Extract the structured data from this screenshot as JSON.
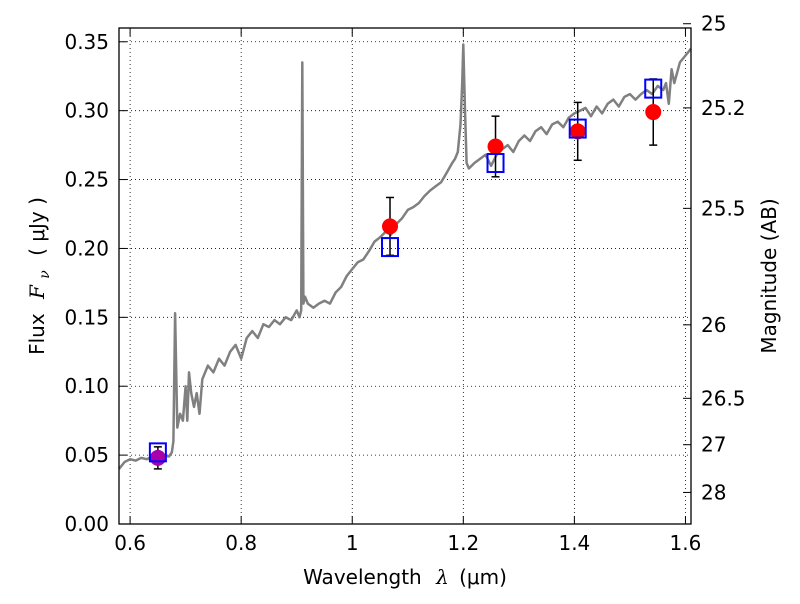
{
  "chart_data": {
    "type": "scatter",
    "xlabel": {
      "prefix": "Wavelength",
      "symbol": "λ",
      "unit": "(μm)"
    },
    "ylabel": {
      "prefix": "Flux",
      "symbol": "F",
      "subscript": "ν",
      "unit": "( μJy )"
    },
    "ylabel_right": "Magnitude (AB)",
    "xlim": [
      0.58,
      1.61
    ],
    "ylim": [
      0.0,
      0.36
    ],
    "grid": true,
    "x_ticks": [
      {
        "value": 0.6,
        "label": "0.6"
      },
      {
        "value": 0.8,
        "label": "0.8"
      },
      {
        "value": 1.0,
        "label": "1"
      },
      {
        "value": 1.2,
        "label": "1.2"
      },
      {
        "value": 1.4,
        "label": "1.4"
      },
      {
        "value": 1.6,
        "label": "1.6"
      }
    ],
    "y_ticks": [
      {
        "value": 0.0,
        "label": "0.00"
      },
      {
        "value": 0.05,
        "label": "0.05"
      },
      {
        "value": 0.1,
        "label": "0.10"
      },
      {
        "value": 0.15,
        "label": "0.15"
      },
      {
        "value": 0.2,
        "label": "0.20"
      },
      {
        "value": 0.25,
        "label": "0.25"
      },
      {
        "value": 0.3,
        "label": "0.30"
      },
      {
        "value": 0.35,
        "label": "0.35"
      }
    ],
    "right_ticks": [
      {
        "magnitude": 25,
        "label": "25"
      },
      {
        "magnitude": 25.2,
        "label": "25.2"
      },
      {
        "magnitude": 25.5,
        "label": "25.5"
      },
      {
        "magnitude": 26,
        "label": "26"
      },
      {
        "magnitude": 26.5,
        "label": "26.5"
      },
      {
        "magnitude": 27,
        "label": "27"
      },
      {
        "magnitude": 28,
        "label": "28"
      }
    ],
    "series": [
      {
        "name": "model spectrum",
        "type": "line",
        "color": "#808080",
        "x": [
          0.58,
          0.59,
          0.6,
          0.61,
          0.62,
          0.63,
          0.64,
          0.65,
          0.66,
          0.67,
          0.675,
          0.678,
          0.681,
          0.685,
          0.69,
          0.695,
          0.7,
          0.703,
          0.706,
          0.71,
          0.715,
          0.72,
          0.725,
          0.73,
          0.74,
          0.75,
          0.76,
          0.77,
          0.78,
          0.79,
          0.8,
          0.81,
          0.82,
          0.83,
          0.84,
          0.85,
          0.86,
          0.87,
          0.88,
          0.89,
          0.9,
          0.905,
          0.908,
          0.91,
          0.912,
          0.915,
          0.92,
          0.93,
          0.94,
          0.95,
          0.96,
          0.97,
          0.98,
          0.99,
          1.0,
          1.01,
          1.02,
          1.03,
          1.04,
          1.05,
          1.06,
          1.07,
          1.08,
          1.09,
          1.1,
          1.11,
          1.12,
          1.13,
          1.14,
          1.15,
          1.16,
          1.17,
          1.18,
          1.185,
          1.19,
          1.195,
          1.198,
          1.2,
          1.203,
          1.206,
          1.21,
          1.22,
          1.23,
          1.24,
          1.25,
          1.26,
          1.27,
          1.28,
          1.29,
          1.3,
          1.31,
          1.32,
          1.33,
          1.34,
          1.35,
          1.36,
          1.37,
          1.38,
          1.39,
          1.4,
          1.41,
          1.42,
          1.43,
          1.44,
          1.45,
          1.46,
          1.47,
          1.48,
          1.49,
          1.5,
          1.51,
          1.52,
          1.53,
          1.54,
          1.55,
          1.56,
          1.565,
          1.57,
          1.575,
          1.58,
          1.59,
          1.6,
          1.61
        ],
        "y": [
          0.04,
          0.045,
          0.047,
          0.046,
          0.048,
          0.047,
          0.049,
          0.048,
          0.05,
          0.049,
          0.052,
          0.06,
          0.153,
          0.07,
          0.08,
          0.075,
          0.1,
          0.075,
          0.11,
          0.095,
          0.085,
          0.095,
          0.08,
          0.105,
          0.115,
          0.11,
          0.12,
          0.115,
          0.125,
          0.13,
          0.12,
          0.135,
          0.14,
          0.135,
          0.145,
          0.143,
          0.148,
          0.145,
          0.15,
          0.148,
          0.155,
          0.15,
          0.155,
          0.335,
          0.16,
          0.165,
          0.16,
          0.157,
          0.16,
          0.162,
          0.16,
          0.168,
          0.172,
          0.18,
          0.185,
          0.19,
          0.192,
          0.198,
          0.205,
          0.208,
          0.212,
          0.21,
          0.218,
          0.222,
          0.228,
          0.23,
          0.233,
          0.238,
          0.242,
          0.245,
          0.248,
          0.255,
          0.262,
          0.265,
          0.27,
          0.29,
          0.32,
          0.348,
          0.3,
          0.262,
          0.258,
          0.262,
          0.265,
          0.268,
          0.26,
          0.268,
          0.272,
          0.275,
          0.27,
          0.278,
          0.282,
          0.278,
          0.285,
          0.288,
          0.283,
          0.29,
          0.292,
          0.288,
          0.295,
          0.298,
          0.3,
          0.302,
          0.296,
          0.303,
          0.298,
          0.305,
          0.308,
          0.303,
          0.31,
          0.312,
          0.308,
          0.312,
          0.315,
          0.312,
          0.318,
          0.315,
          0.32,
          0.305,
          0.33,
          0.32,
          0.335,
          0.34,
          0.345
        ]
      },
      {
        "name": "model photometry",
        "type": "scatter",
        "marker": "open-square",
        "color": "#0000ff",
        "x": [
          0.65,
          1.068,
          1.258,
          1.406,
          1.542
        ],
        "y": [
          0.052,
          0.201,
          0.262,
          0.287,
          0.316
        ]
      },
      {
        "name": "observed photometry",
        "type": "errorbar",
        "marker": "filled-circle",
        "color": "#ff0000",
        "x": [
          0.65,
          1.068,
          1.258,
          1.406,
          1.542
        ],
        "y": [
          0.048,
          0.216,
          0.274,
          0.285,
          0.299
        ],
        "err": [
          0.008,
          0.021,
          0.022,
          0.021,
          0.024
        ],
        "point_colors": [
          "#aa00aa",
          "#ff0000",
          "#ff0000",
          "#ff0000",
          "#ff0000"
        ]
      }
    ]
  }
}
